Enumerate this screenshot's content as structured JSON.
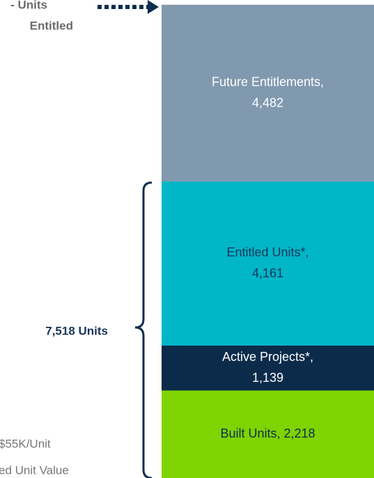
{
  "chart_data": {
    "type": "stacked-bar",
    "ylim": [
      0,
      12120
    ],
    "series": [
      {
        "name": "Built Units,",
        "values": [
          2218
        ],
        "value_labels": [
          "2,218"
        ],
        "color": "#7ed400",
        "label_color": "#0d2d4f",
        "label_inline": true
      },
      {
        "name": "Active Projects*,",
        "values": [
          1139
        ],
        "value_labels": [
          "1,139"
        ],
        "color": "#0c2b4b",
        "label_color": "#ffffff"
      },
      {
        "name": "Entitled Units*,",
        "values": [
          4161
        ],
        "value_labels": [
          "4,161"
        ],
        "color": "#00b6c7",
        "label_color": "#17365a"
      },
      {
        "name": "Future Entitlements,",
        "values": [
          4482
        ],
        "value_labels": [
          "4,482"
        ],
        "color": "#8199af",
        "label_color": "#ffffff"
      }
    ],
    "annotations": {
      "brace": "7,518 Units",
      "top_line1": "- Units",
      "top_line2": "Entitled",
      "bottom_line1": "$55K/Unit",
      "bottom_line2": "ed Unit Value"
    }
  }
}
